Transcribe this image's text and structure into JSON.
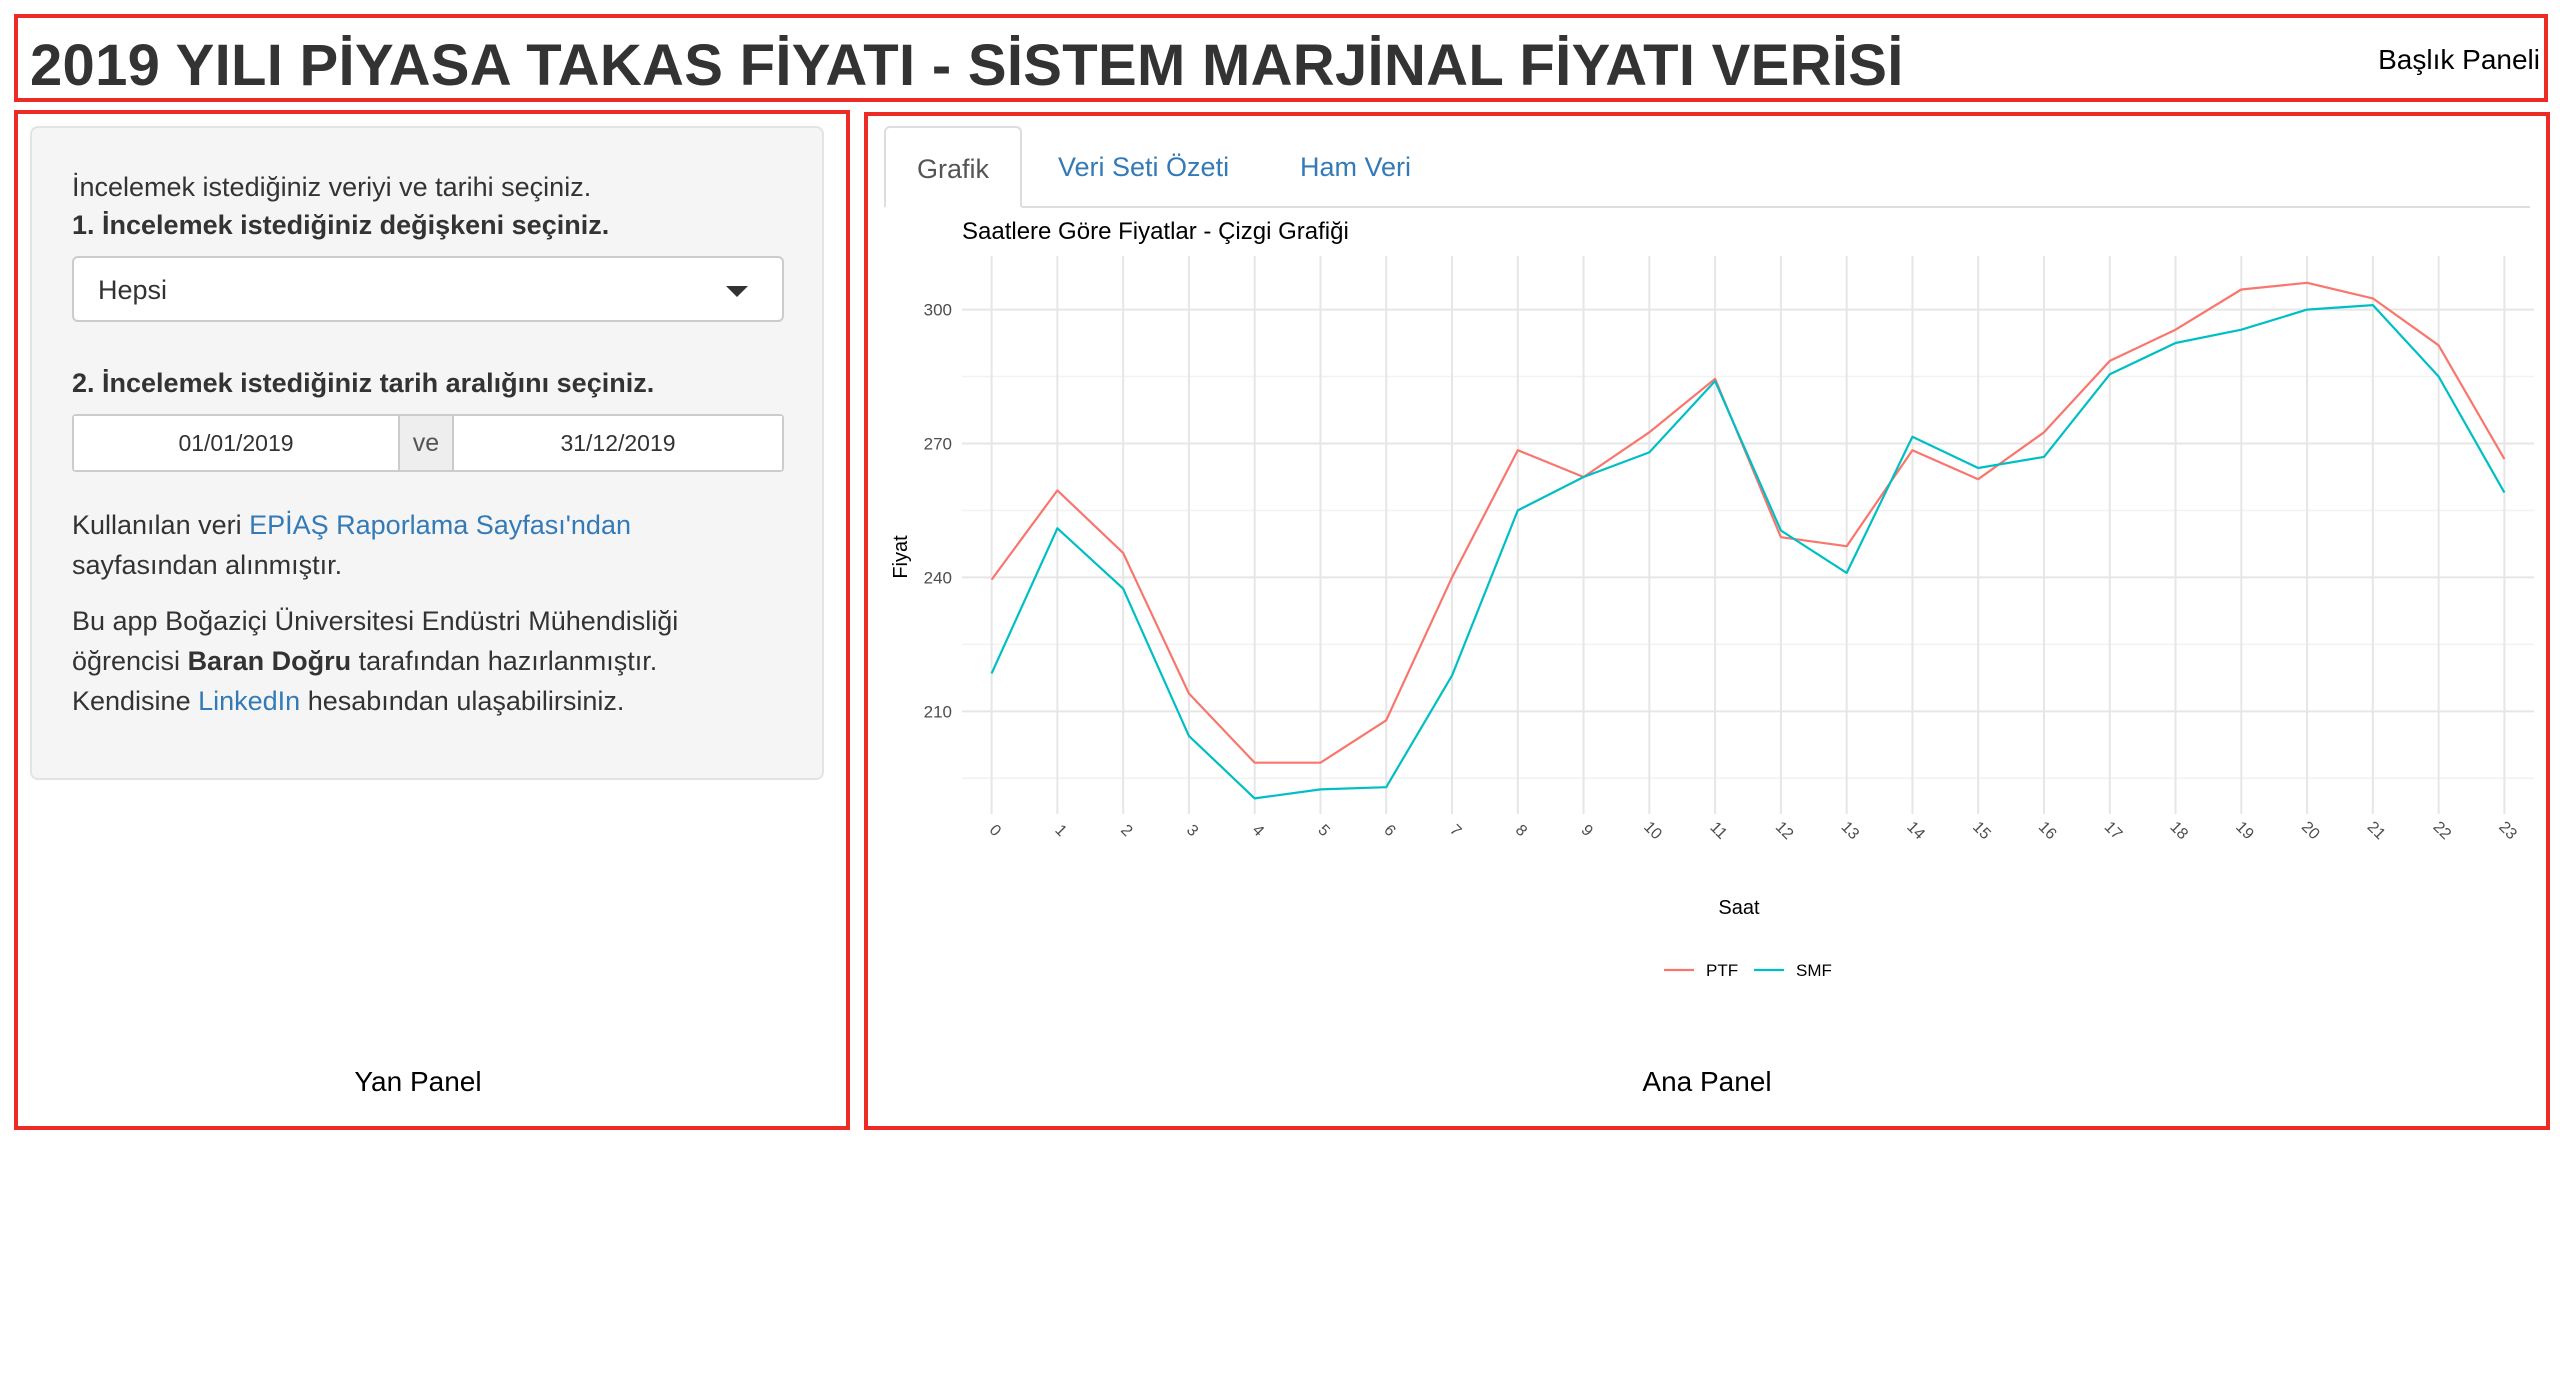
{
  "header": {
    "title": "2019 YILI PİYASA TAKAS FİYATI - SİSTEM MARJİNAL FİYATI VERİSİ",
    "region_label": "Başlık Paneli"
  },
  "sidebar": {
    "intro": "İncelemek istediğiniz veriyi ve tarihi seçiniz.",
    "variable_label": "1. İncelemek istediğiniz değişkeni seçiniz.",
    "variable_value": "Hepsi",
    "date_label": "2. İncelemek istediğiniz tarih aralığını seçiniz.",
    "date_start": "01/01/2019",
    "date_separator": "ve",
    "date_end": "31/12/2019",
    "source_prefix": "Kullanılan veri ",
    "source_link": "EPİAŞ Raporlama Sayfası'ndan",
    "source_suffix": "sayfasından alınmıştır.",
    "credit_line1": "Bu app Boğaziçi Üniversitesi Endüstri Mühendisliği",
    "credit_line2_prefix": "öğrencisi ",
    "credit_author": "Baran Doğru",
    "credit_line2_suffix": " tarafından hazırlanmıştır.",
    "contact_prefix": "Kendisine ",
    "contact_link": "LinkedIn",
    "contact_suffix": " hesabından ulaşabilirsiniz.",
    "region_label": "Yan Panel"
  },
  "main": {
    "tabs": [
      {
        "label": "Grafik",
        "active": true
      },
      {
        "label": "Veri Seti Özeti",
        "active": false
      },
      {
        "label": "Ham Veri",
        "active": false
      }
    ],
    "region_label": "Ana Panel"
  },
  "chart_data": {
    "type": "line",
    "title": "Saatlere Göre Fiyatlar - Çizgi Grafiği",
    "xlabel": "Saat",
    "ylabel": "Fiyat",
    "x": [
      0,
      1,
      2,
      3,
      4,
      5,
      6,
      7,
      8,
      9,
      10,
      11,
      12,
      13,
      14,
      15,
      16,
      17,
      18,
      19,
      20,
      21,
      22,
      23
    ],
    "ylim": [
      187,
      312
    ],
    "yticks": [
      210,
      240,
      270,
      300
    ],
    "grid": true,
    "legend_position": "bottom",
    "series": [
      {
        "name": "PTF",
        "color": "#f8766d",
        "values": [
          239.5,
          259.5,
          245.5,
          214,
          198.5,
          198.5,
          208,
          240,
          268.5,
          262.5,
          272.5,
          284.5,
          249,
          247,
          268.5,
          262,
          272.5,
          288.5,
          295.5,
          304.5,
          306,
          302.5,
          292,
          266.5
        ]
      },
      {
        "name": "SMF",
        "color": "#00bfc4",
        "values": [
          218.5,
          251,
          237.5,
          204.5,
          190.5,
          192.5,
          193,
          218,
          255,
          262.5,
          268,
          284,
          250.5,
          241,
          271.5,
          264.5,
          267,
          285.5,
          292.5,
          295.5,
          300,
          301,
          285,
          259
        ]
      }
    ]
  }
}
